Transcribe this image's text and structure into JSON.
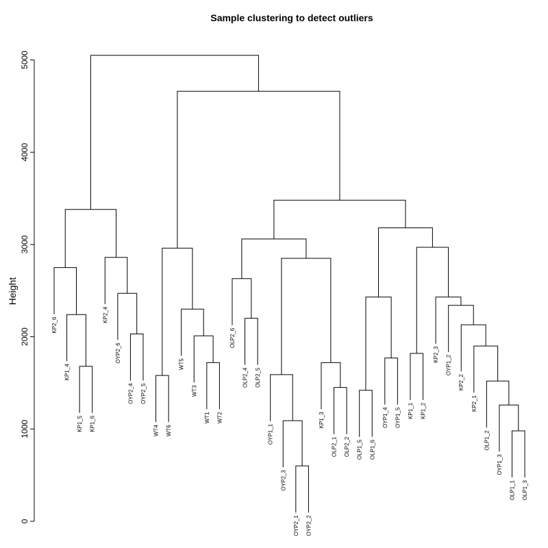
{
  "chart_data": {
    "type": "dendrogram",
    "title": "Sample clustering to detect outliers",
    "ylabel": "Height",
    "xlabel": "",
    "ylim": [
      0,
      5200
    ],
    "yticks": [
      0,
      1000,
      2000,
      3000,
      4000,
      5000
    ],
    "grid": false,
    "leaves": [
      {
        "name": "KP2_6",
        "height": 0
      },
      {
        "name": "KP1_4",
        "height": 0
      },
      {
        "name": "KP1_5",
        "height": 0
      },
      {
        "name": "KP1_6",
        "height": 0
      },
      {
        "name": "KP2_4",
        "height": 0
      },
      {
        "name": "OYP2_6",
        "height": 0
      },
      {
        "name": "OYP2_4",
        "height": 0
      },
      {
        "name": "OYP2_5",
        "height": 0
      },
      {
        "name": "WT4",
        "height": 0
      },
      {
        "name": "WT6",
        "height": 0
      },
      {
        "name": "WT5",
        "height": 0
      },
      {
        "name": "WT3",
        "height": 0
      },
      {
        "name": "WT1",
        "height": 0
      },
      {
        "name": "WT2",
        "height": 0
      },
      {
        "name": "OLP2_6",
        "height": 0
      },
      {
        "name": "OLP2_4",
        "height": 0
      },
      {
        "name": "OLP2_5",
        "height": 0
      },
      {
        "name": "OYP1_1",
        "height": 0
      },
      {
        "name": "OYP2_3",
        "height": 0
      },
      {
        "name": "OYP2_1",
        "height": 0
      },
      {
        "name": "OYP2_2",
        "height": 0
      },
      {
        "name": "KP1_3",
        "height": 0
      },
      {
        "name": "OLP2_1",
        "height": 0
      },
      {
        "name": "OLP2_2",
        "height": 0
      },
      {
        "name": "OLP1_5",
        "height": 0
      },
      {
        "name": "OLP1_6",
        "height": 0
      },
      {
        "name": "OYP1_4",
        "height": 0
      },
      {
        "name": "OYP1_5",
        "height": 0
      },
      {
        "name": "KP1_1",
        "height": 0
      },
      {
        "name": "KP1_2",
        "height": 0
      },
      {
        "name": "KP2_3",
        "height": 0
      },
      {
        "name": "OYP1_2",
        "height": 0
      },
      {
        "name": "KP2_2",
        "height": 0
      },
      {
        "name": "KP2_1",
        "height": 0
      },
      {
        "name": "OLP1_2",
        "height": 0
      },
      {
        "name": "OYP1_3",
        "height": 0
      },
      {
        "name": "OLP1_1",
        "height": 0
      },
      {
        "name": "OLP1_3",
        "height": 0
      }
    ],
    "merges": [
      {
        "id": "n1",
        "left": "KP1_5",
        "right": "KP1_6",
        "height": 1680
      },
      {
        "id": "n2",
        "left": "KP1_4",
        "right": "n1",
        "height": 2240
      },
      {
        "id": "n3",
        "left": "KP2_6",
        "right": "n2",
        "height": 2750
      },
      {
        "id": "n4",
        "left": "OYP2_4",
        "right": "OYP2_5",
        "height": 2030
      },
      {
        "id": "n5",
        "left": "OYP2_6",
        "right": "n4",
        "height": 2470
      },
      {
        "id": "n6",
        "left": "KP2_4",
        "right": "n5",
        "height": 2860
      },
      {
        "id": "n7",
        "left": "n3",
        "right": "n6",
        "height": 3380
      },
      {
        "id": "n8",
        "left": "WT4",
        "right": "WT6",
        "height": 1580
      },
      {
        "id": "n9",
        "left": "WT1",
        "right": "WT2",
        "height": 1720
      },
      {
        "id": "n10",
        "left": "WT3",
        "right": "n9",
        "height": 2010
      },
      {
        "id": "n11",
        "left": "WT5",
        "right": "n10",
        "height": 2300
      },
      {
        "id": "n12",
        "left": "n8",
        "right": "n11",
        "height": 2960
      },
      {
        "id": "n13",
        "left": "OLP2_4",
        "right": "OLP2_5",
        "height": 2200
      },
      {
        "id": "n14",
        "left": "OLP2_6",
        "right": "n13",
        "height": 2630
      },
      {
        "id": "n15",
        "left": "OYP2_1",
        "right": "OYP2_2",
        "height": 600
      },
      {
        "id": "n16",
        "left": "OYP2_3",
        "right": "n15",
        "height": 1090
      },
      {
        "id": "n17",
        "left": "OYP1_1",
        "right": "n16",
        "height": 1590
      },
      {
        "id": "n18",
        "left": "OLP2_1",
        "right": "OLP2_2",
        "height": 1450
      },
      {
        "id": "n19",
        "left": "KP1_3",
        "right": "n18",
        "height": 1720
      },
      {
        "id": "n20",
        "left": "n17",
        "right": "n19",
        "height": 2850
      },
      {
        "id": "n21",
        "left": "n14",
        "right": "n20",
        "height": 3060
      },
      {
        "id": "n22",
        "left": "OLP1_5",
        "right": "OLP1_6",
        "height": 1420
      },
      {
        "id": "n23",
        "left": "OYP1_4",
        "right": "OYP1_5",
        "height": 1770
      },
      {
        "id": "n24",
        "left": "n22",
        "right": "n23",
        "height": 2430
      },
      {
        "id": "n25",
        "left": "KP1_1",
        "right": "KP1_2",
        "height": 1820
      },
      {
        "id": "n26",
        "left": "OLP1_1",
        "right": "OLP1_3",
        "height": 980
      },
      {
        "id": "n27",
        "left": "OYP1_3",
        "right": "n26",
        "height": 1260
      },
      {
        "id": "n28",
        "left": "OLP1_2",
        "right": "n27",
        "height": 1520
      },
      {
        "id": "n29",
        "left": "KP2_1",
        "right": "n28",
        "height": 1900
      },
      {
        "id": "n30",
        "left": "KP2_2",
        "right": "n29",
        "height": 2130
      },
      {
        "id": "n31",
        "left": "OYP1_2",
        "right": "n30",
        "height": 2340
      },
      {
        "id": "n32",
        "left": "KP2_3",
        "right": "n31",
        "height": 2430
      },
      {
        "id": "n33",
        "left": "n25",
        "right": "n32",
        "height": 2970
      },
      {
        "id": "n34",
        "left": "n24",
        "right": "n33",
        "height": 3180
      },
      {
        "id": "n35",
        "left": "n21",
        "right": "n34",
        "height": 3480
      },
      {
        "id": "n36",
        "left": "n12",
        "right": "n35",
        "height": 4660
      },
      {
        "id": "n37",
        "left": "n7",
        "right": "n36",
        "height": 5050
      }
    ]
  }
}
